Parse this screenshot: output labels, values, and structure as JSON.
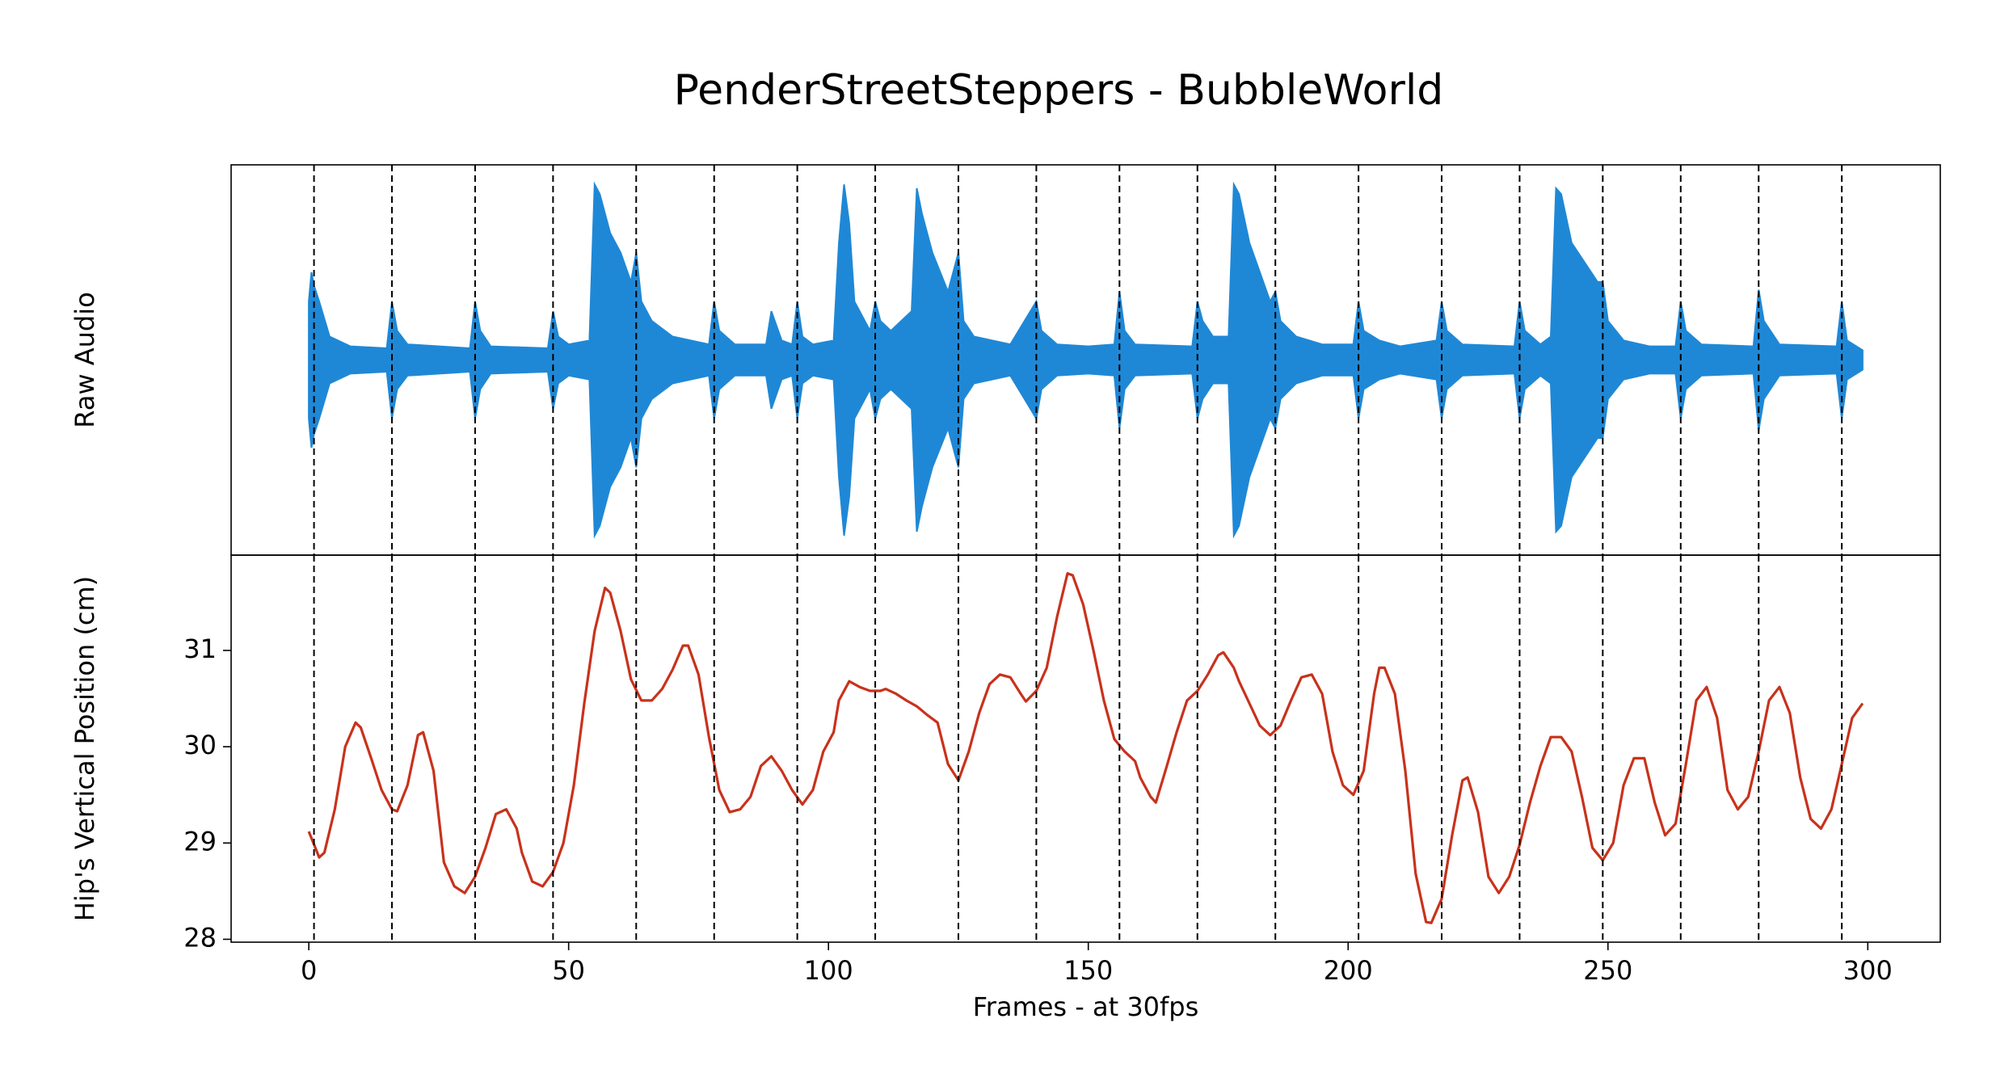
{
  "chart_data": [
    {
      "type": "envelope",
      "title": "PenderStreetSteppers - BubbleWorld",
      "ylabel": "Raw Audio",
      "color": "#1f88d6",
      "xlim": [
        -14.95,
        313.95
      ],
      "ylim": [
        -1,
        1
      ],
      "vlines": [
        1,
        16,
        32,
        47,
        63,
        78,
        94,
        109,
        125,
        140,
        156,
        171,
        186,
        202,
        218,
        233,
        249,
        264,
        279,
        295
      ],
      "x": [
        0,
        0.5,
        1,
        2,
        4,
        8,
        15,
        16,
        17,
        19,
        31,
        32,
        33,
        35,
        46,
        47,
        48,
        50,
        54,
        55,
        56,
        58,
        60,
        62,
        63,
        64,
        66,
        70,
        77,
        78,
        79,
        82,
        88,
        89,
        91,
        93,
        94,
        95,
        97,
        101,
        102,
        103,
        104,
        105,
        108,
        109,
        110,
        112,
        116,
        117,
        118,
        120,
        123,
        125,
        126,
        128,
        135,
        140,
        141,
        144,
        150,
        155,
        156,
        157,
        159,
        170,
        171,
        172,
        174,
        177,
        178,
        179,
        181,
        185,
        186,
        187,
        190,
        195,
        201,
        202,
        203,
        206,
        210,
        217,
        218,
        219,
        222,
        232,
        233,
        234,
        237,
        239,
        240,
        241,
        243,
        248,
        249,
        250,
        253,
        258,
        263,
        264,
        265,
        268,
        278,
        279,
        280,
        283,
        294,
        295,
        296,
        299
      ],
      "values": [
        0.3,
        0.45,
        0.38,
        0.3,
        0.12,
        0.07,
        0.06,
        0.3,
        0.15,
        0.08,
        0.06,
        0.3,
        0.15,
        0.07,
        0.06,
        0.25,
        0.12,
        0.08,
        0.1,
        0.9,
        0.85,
        0.65,
        0.55,
        0.4,
        0.55,
        0.3,
        0.2,
        0.12,
        0.08,
        0.3,
        0.15,
        0.08,
        0.08,
        0.25,
        0.1,
        0.08,
        0.3,
        0.12,
        0.08,
        0.1,
        0.6,
        0.9,
        0.7,
        0.3,
        0.15,
        0.3,
        0.2,
        0.15,
        0.25,
        0.88,
        0.75,
        0.55,
        0.35,
        0.55,
        0.2,
        0.12,
        0.08,
        0.3,
        0.15,
        0.08,
        0.07,
        0.08,
        0.35,
        0.15,
        0.08,
        0.07,
        0.3,
        0.2,
        0.12,
        0.12,
        0.9,
        0.85,
        0.6,
        0.3,
        0.35,
        0.2,
        0.12,
        0.08,
        0.08,
        0.3,
        0.15,
        0.1,
        0.07,
        0.1,
        0.3,
        0.15,
        0.08,
        0.07,
        0.3,
        0.15,
        0.08,
        0.12,
        0.88,
        0.85,
        0.6,
        0.4,
        0.4,
        0.2,
        0.1,
        0.07,
        0.07,
        0.3,
        0.15,
        0.08,
        0.07,
        0.36,
        0.2,
        0.08,
        0.07,
        0.3,
        0.1,
        0.05
      ]
    },
    {
      "type": "line",
      "ylabel": "Hip's Vertical Position (cm)",
      "xlabel": "Frames - at 30fps",
      "color": "#c8321c",
      "xlim": [
        -14.95,
        313.95
      ],
      "ylim": [
        27.97,
        31.99
      ],
      "xticks": [
        0,
        50,
        100,
        150,
        200,
        250,
        300
      ],
      "yticks": [
        28,
        29,
        30,
        31
      ],
      "vlines": [
        1,
        16,
        32,
        47,
        63,
        78,
        94,
        109,
        125,
        140,
        156,
        171,
        186,
        202,
        218,
        233,
        249,
        264,
        279,
        295
      ],
      "x": [
        0,
        2,
        3,
        5,
        7,
        9,
        10,
        12,
        14,
        16,
        17,
        19,
        21,
        22,
        24,
        26,
        28,
        30,
        32,
        34,
        36,
        38,
        40,
        41,
        43,
        45,
        47,
        49,
        51,
        53,
        55,
        57,
        58,
        60,
        62,
        64,
        66,
        68,
        70,
        72,
        73,
        75,
        77,
        79,
        81,
        83,
        85,
        87,
        89,
        91,
        93,
        95,
        97,
        99,
        101,
        102,
        104,
        106,
        108,
        110,
        111,
        113,
        115,
        117,
        119,
        121,
        123,
        125,
        127,
        129,
        131,
        133,
        135,
        137,
        138,
        140,
        142,
        144,
        146,
        147,
        149,
        151,
        153,
        155,
        157,
        159,
        160,
        162,
        163,
        165,
        167,
        169,
        171,
        173,
        175,
        176,
        178,
        179,
        181,
        183,
        185,
        187,
        189,
        191,
        193,
        195,
        197,
        199,
        201,
        203,
        205,
        206,
        207,
        209,
        211,
        213,
        215,
        216,
        218,
        220,
        222,
        223,
        225,
        227,
        229,
        231,
        233,
        235,
        237,
        239,
        241,
        243,
        245,
        247,
        249,
        251,
        253,
        255,
        257,
        259,
        261,
        263,
        265,
        267,
        269,
        271,
        273,
        275,
        277,
        279,
        281,
        283,
        285,
        287,
        289,
        291,
        293,
        295,
        297,
        299
      ],
      "values": [
        29.12,
        28.85,
        28.9,
        29.35,
        30.0,
        30.25,
        30.2,
        29.88,
        29.55,
        29.35,
        29.33,
        29.6,
        30.12,
        30.15,
        29.75,
        28.8,
        28.55,
        28.48,
        28.65,
        28.95,
        29.3,
        29.35,
        29.15,
        28.9,
        28.6,
        28.55,
        28.7,
        29.0,
        29.6,
        30.45,
        31.2,
        31.65,
        31.6,
        31.2,
        30.7,
        30.48,
        30.48,
        30.6,
        30.8,
        31.05,
        31.05,
        30.75,
        30.1,
        29.55,
        29.32,
        29.35,
        29.48,
        29.8,
        29.9,
        29.75,
        29.55,
        29.4,
        29.55,
        29.95,
        30.15,
        30.48,
        30.68,
        30.62,
        30.58,
        30.58,
        30.6,
        30.55,
        30.48,
        30.42,
        30.33,
        30.25,
        29.82,
        29.65,
        29.95,
        30.35,
        30.65,
        30.75,
        30.72,
        30.55,
        30.47,
        30.58,
        30.82,
        31.35,
        31.8,
        31.78,
        31.48,
        31.0,
        30.48,
        30.08,
        29.95,
        29.85,
        29.68,
        29.48,
        29.42,
        29.78,
        30.15,
        30.48,
        30.58,
        30.75,
        30.95,
        30.98,
        30.82,
        30.68,
        30.45,
        30.22,
        30.12,
        30.22,
        30.48,
        30.72,
        30.75,
        30.55,
        29.95,
        29.6,
        29.5,
        29.75,
        30.55,
        30.82,
        30.82,
        30.55,
        29.75,
        28.68,
        28.18,
        28.17,
        28.42,
        29.08,
        29.65,
        29.68,
        29.32,
        28.65,
        28.48,
        28.65,
        28.98,
        29.42,
        29.8,
        30.1,
        30.1,
        29.95,
        29.48,
        28.95,
        28.82,
        29.0,
        29.6,
        29.88,
        29.88,
        29.42,
        29.08,
        29.2,
        29.82,
        30.48,
        30.62,
        30.3,
        29.55,
        29.35,
        29.48,
        29.95,
        30.48,
        30.62,
        30.35,
        29.68,
        29.25,
        29.15,
        29.35,
        29.82,
        30.3,
        30.45
      ]
    }
  ]
}
